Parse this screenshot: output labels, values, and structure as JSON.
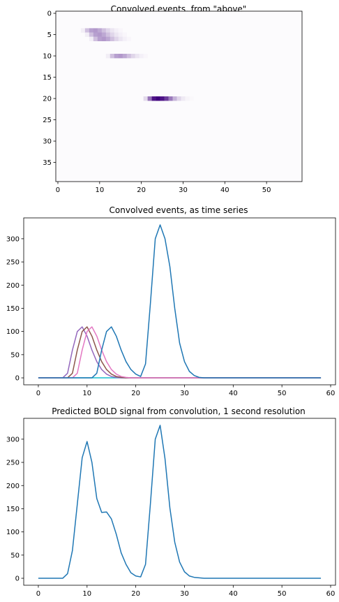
{
  "colors": {
    "c0": "#1f77b4",
    "c_purple": "#9467bd",
    "c_brown": "#8c564b",
    "c_pink": "#e377c2",
    "c_cyan": "#17becf",
    "heat_low": "#fcfbfd",
    "heat_high": "#3f007d"
  },
  "chart_data": [
    {
      "type": "heatmap",
      "title": "Convolved events, from \"above\"",
      "colormap": "Purples",
      "xlim": [
        -0.5,
        58.5
      ],
      "ylim": [
        39.5,
        -0.5
      ],
      "xticks": [
        0,
        10,
        20,
        30,
        40,
        50
      ],
      "yticks": [
        0,
        5,
        10,
        15,
        20,
        25,
        30,
        35
      ],
      "n_rows": 40,
      "n_cols": 59,
      "max_value": 330,
      "rows": [
        {
          "row": 4,
          "values": {
            "6": 10,
            "7": 60,
            "8": 100,
            "9": 110,
            "10": 90,
            "11": 60,
            "12": 35,
            "13": 18,
            "14": 8,
            "15": 3
          }
        },
        {
          "row": 5,
          "values": {
            "7": 10,
            "8": 60,
            "9": 100,
            "10": 110,
            "11": 90,
            "12": 60,
            "13": 35,
            "14": 18,
            "15": 8,
            "16": 3
          }
        },
        {
          "row": 6,
          "values": {
            "8": 10,
            "9": 60,
            "10": 100,
            "11": 110,
            "12": 90,
            "13": 60,
            "14": 35,
            "15": 18,
            "16": 8,
            "17": 3
          }
        },
        {
          "row": 10,
          "values": {
            "12": 10,
            "13": 60,
            "14": 100,
            "15": 110,
            "16": 90,
            "17": 60,
            "18": 35,
            "19": 18,
            "20": 8,
            "21": 3
          }
        },
        {
          "row": 20,
          "values": {
            "21": 30,
            "22": 160,
            "23": 300,
            "24": 330,
            "25": 300,
            "26": 240,
            "27": 150,
            "28": 75,
            "29": 35,
            "30": 14,
            "31": 5,
            "32": 2
          }
        }
      ]
    },
    {
      "type": "line",
      "title": "Convolved events, as time series",
      "xlim": [
        -3,
        61
      ],
      "ylim": [
        -15,
        345
      ],
      "xticks": [
        0,
        10,
        20,
        30,
        40,
        50,
        60
      ],
      "yticks": [
        0,
        50,
        100,
        150,
        200,
        250,
        300
      ],
      "x_start": 0,
      "x_end": 58,
      "series": [
        {
          "color": "#17becf",
          "points": [
            [
              0,
              0
            ],
            [
              58,
              0
            ]
          ]
        },
        {
          "color": "#9467bd",
          "points": [
            [
              0,
              0
            ],
            [
              5,
              0
            ],
            [
              6,
              10
            ],
            [
              7,
              60
            ],
            [
              8,
              100
            ],
            [
              9,
              110
            ],
            [
              10,
              90
            ],
            [
              11,
              60
            ],
            [
              12,
              35
            ],
            [
              13,
              18
            ],
            [
              14,
              8
            ],
            [
              15,
              3
            ],
            [
              16,
              1
            ],
            [
              17,
              0
            ],
            [
              58,
              0
            ]
          ]
        },
        {
          "color": "#8c564b",
          "points": [
            [
              0,
              0
            ],
            [
              6,
              0
            ],
            [
              7,
              10
            ],
            [
              8,
              60
            ],
            [
              9,
              100
            ],
            [
              10,
              110
            ],
            [
              11,
              90
            ],
            [
              12,
              60
            ],
            [
              13,
              35
            ],
            [
              14,
              18
            ],
            [
              15,
              8
            ],
            [
              16,
              3
            ],
            [
              17,
              1
            ],
            [
              18,
              0
            ],
            [
              58,
              0
            ]
          ]
        },
        {
          "color": "#e377c2",
          "points": [
            [
              0,
              0
            ],
            [
              7,
              0
            ],
            [
              8,
              10
            ],
            [
              9,
              60
            ],
            [
              10,
              100
            ],
            [
              11,
              110
            ],
            [
              12,
              90
            ],
            [
              13,
              60
            ],
            [
              14,
              35
            ],
            [
              15,
              18
            ],
            [
              16,
              8
            ],
            [
              17,
              3
            ],
            [
              18,
              1
            ],
            [
              19,
              0
            ],
            [
              58,
              0
            ]
          ]
        },
        {
          "color": "#1f77b4",
          "points": [
            [
              0,
              0
            ],
            [
              11,
              0
            ],
            [
              12,
              10
            ],
            [
              13,
              60
            ],
            [
              14,
              100
            ],
            [
              15,
              110
            ],
            [
              16,
              90
            ],
            [
              17,
              60
            ],
            [
              18,
              35
            ],
            [
              19,
              18
            ],
            [
              20,
              8
            ],
            [
              21,
              3
            ],
            [
              22,
              30
            ],
            [
              23,
              160
            ],
            [
              24,
              300
            ],
            [
              25,
              330
            ],
            [
              26,
              300
            ],
            [
              27,
              240
            ],
            [
              28,
              150
            ],
            [
              29,
              75
            ],
            [
              30,
              35
            ],
            [
              31,
              14
            ],
            [
              32,
              5
            ],
            [
              33,
              1
            ],
            [
              34,
              0
            ],
            [
              58,
              0
            ]
          ]
        }
      ]
    },
    {
      "type": "line",
      "title": "Predicted BOLD signal from convolution, 1 second resolution",
      "xlim": [
        -3,
        61
      ],
      "ylim": [
        -15,
        345
      ],
      "xticks": [
        0,
        10,
        20,
        30,
        40,
        50,
        60
      ],
      "yticks": [
        0,
        50,
        100,
        150,
        200,
        250,
        300
      ],
      "series": [
        {
          "color": "#1f77b4",
          "points": [
            [
              0,
              0
            ],
            [
              1,
              0
            ],
            [
              2,
              0
            ],
            [
              3,
              0
            ],
            [
              4,
              0
            ],
            [
              5,
              0
            ],
            [
              6,
              10
            ],
            [
              7,
              60
            ],
            [
              8,
              160
            ],
            [
              9,
              260
            ],
            [
              10,
              295
            ],
            [
              11,
              250
            ],
            [
              12,
              172
            ],
            [
              13,
              142
            ],
            [
              14,
              143
            ],
            [
              15,
              128
            ],
            [
              16,
              95
            ],
            [
              17,
              55
            ],
            [
              18,
              30
            ],
            [
              19,
              12
            ],
            [
              20,
              5
            ],
            [
              21,
              3
            ],
            [
              22,
              30
            ],
            [
              23,
              160
            ],
            [
              24,
              300
            ],
            [
              25,
              330
            ],
            [
              26,
              258
            ],
            [
              27,
              152
            ],
            [
              28,
              78
            ],
            [
              29,
              35
            ],
            [
              30,
              14
            ],
            [
              31,
              5
            ],
            [
              32,
              2
            ],
            [
              33,
              1
            ],
            [
              34,
              0
            ],
            [
              58,
              0
            ]
          ]
        }
      ]
    }
  ]
}
